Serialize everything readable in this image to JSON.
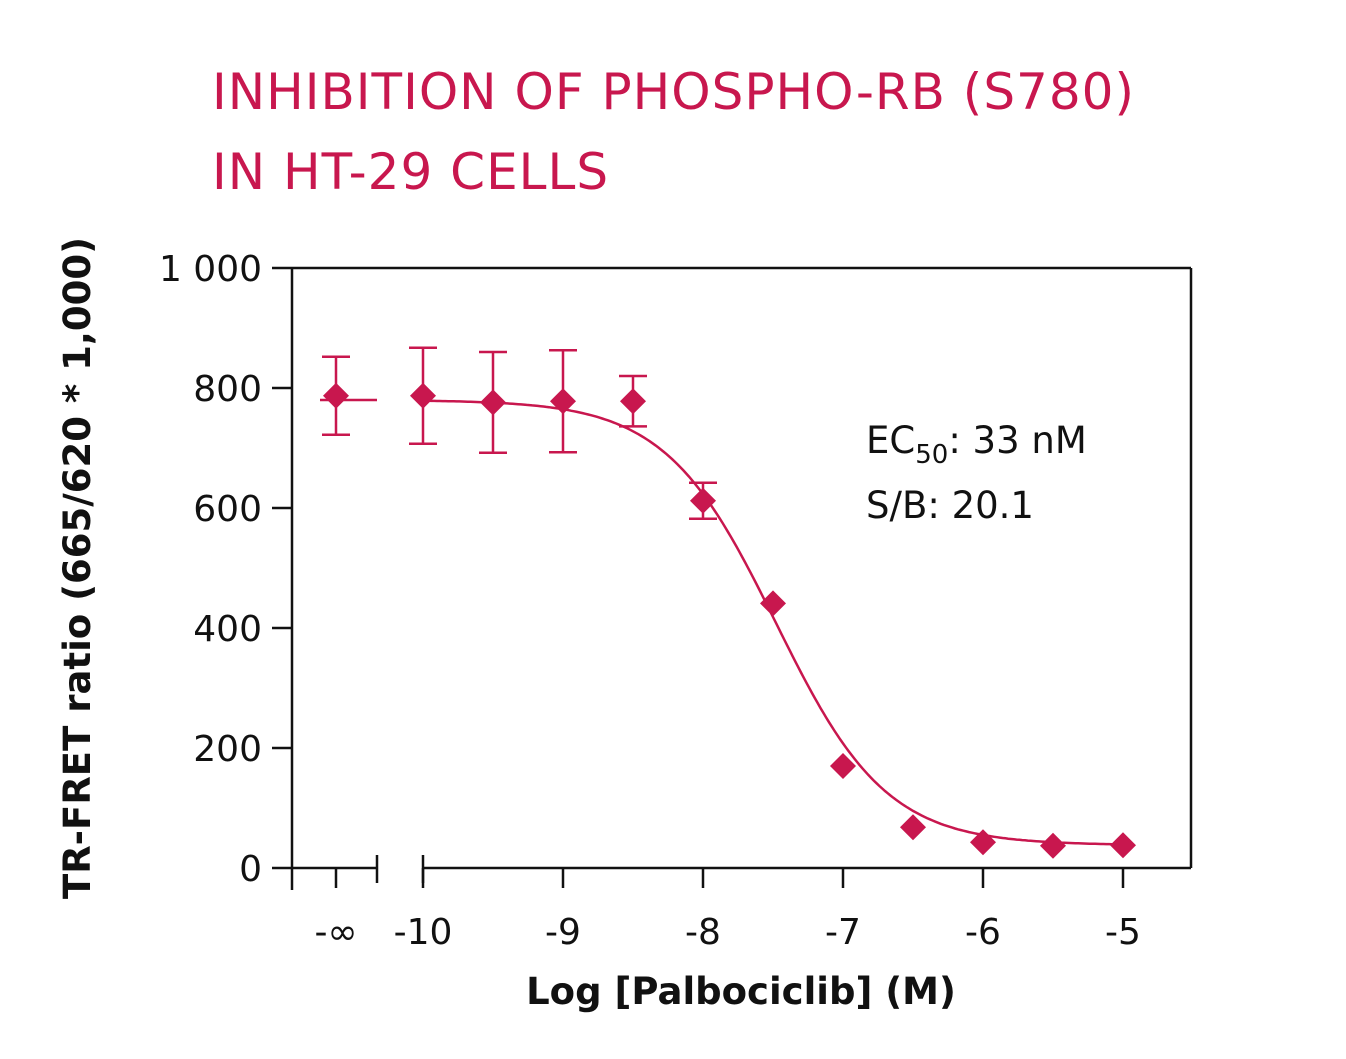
{
  "chart_data": {
    "type": "scatter",
    "title_lines": [
      "INHIBITION OF PHOSPHO-RB (S780)",
      "IN HT-29 CELLS"
    ],
    "xlabel": "Log [Palbociclib] (M)",
    "ylabel": "TR-FRET ratio (665/620 * 1,000)",
    "ylim": [
      0,
      1000
    ],
    "y_ticks": [
      0,
      200,
      400,
      600,
      800,
      1000
    ],
    "y_tick_labels": [
      "0",
      "200",
      "400",
      "600",
      "800",
      "1 000"
    ],
    "x_ticks": [
      -10,
      -9,
      -8,
      -7,
      -6,
      -5
    ],
    "x_tick_labels": [
      "-10",
      "-9",
      "-8",
      "-7",
      "-6",
      "-5"
    ],
    "x_break_label": "-∞",
    "grid": false,
    "legend": "none",
    "color": "#c8174e",
    "points": [
      {
        "x": "-∞",
        "y": 787,
        "err": 65
      },
      {
        "x": -10,
        "y": 787,
        "err": 80
      },
      {
        "x": -9.5,
        "y": 776,
        "err": 84
      },
      {
        "x": -9,
        "y": 778,
        "err": 85
      },
      {
        "x": -8.5,
        "y": 778,
        "err": 42
      },
      {
        "x": -8,
        "y": 612,
        "err": 30
      },
      {
        "x": -7.5,
        "y": 441,
        "err": 0
      },
      {
        "x": -7,
        "y": 170,
        "err": 0
      },
      {
        "x": -6.5,
        "y": 68,
        "err": 0
      },
      {
        "x": -6,
        "y": 43,
        "err": 0
      },
      {
        "x": -5.5,
        "y": 37,
        "err": 0
      },
      {
        "x": -5,
        "y": 38,
        "err": 0
      }
    ],
    "fit": {
      "model": "4PL",
      "top": 780,
      "bottom": 38,
      "logEC50": -7.48,
      "hill": 1.1
    },
    "annotations": {
      "ec50_prefix": "EC",
      "ec50_sub": "50",
      "ec50_value": ": 33 nM",
      "sb": "S/B: 20.1"
    }
  }
}
